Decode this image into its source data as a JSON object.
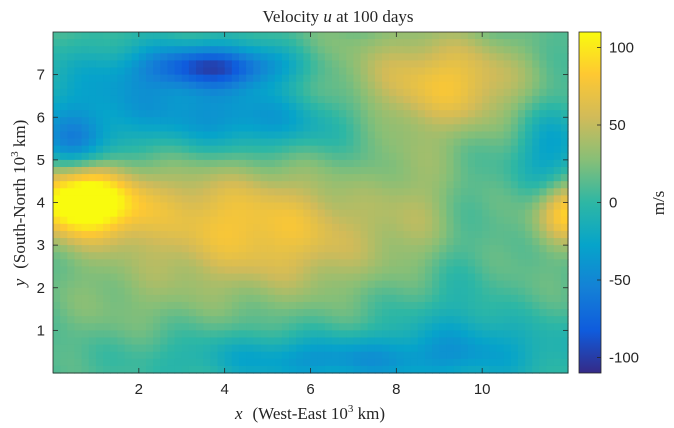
{
  "chart_data": {
    "type": "heatmap",
    "title_prefix": "Velocity ",
    "title_var": "u",
    "title_suffix": " at 100 days",
    "xlabel_var": "x",
    "xlabel_text": "(West-East 10",
    "xlabel_exp": "3",
    "xlabel_unit": " km)",
    "ylabel_var": "y",
    "ylabel_text": "(South-North 10",
    "ylabel_exp": "3",
    "ylabel_unit": " km)",
    "xlim": [
      0,
      12
    ],
    "ylim": [
      0,
      8
    ],
    "x_ticks": [
      2,
      4,
      6,
      8,
      10
    ],
    "y_ticks": [
      1,
      2,
      3,
      4,
      5,
      6,
      7
    ],
    "colorbar": {
      "label": "m/s",
      "range": [
        -110,
        110
      ],
      "ticks": [
        -100,
        -50,
        0,
        50,
        100
      ],
      "colormap": [
        "#352a87",
        "#0f5cdd",
        "#1481d6",
        "#06a4ca",
        "#2eb7a4",
        "#87bf77",
        "#d1bb59",
        "#fec832",
        "#f9fb0e"
      ]
    },
    "features": [
      {
        "x": 0.7,
        "y": 3.9,
        "u": 95,
        "sx": 0.9,
        "sy": 0.55
      },
      {
        "x": 0.4,
        "y": 4.4,
        "u": 40,
        "sx": 0.9,
        "sy": 0.5
      },
      {
        "x": 12.0,
        "y": 3.8,
        "u": 80,
        "sx": 0.5,
        "sy": 0.5
      },
      {
        "x": 5.2,
        "y": 3.1,
        "u": 55,
        "sx": 2.2,
        "sy": 1.0
      },
      {
        "x": 3.5,
        "y": 4.0,
        "u": 30,
        "sx": 2.0,
        "sy": 0.8
      },
      {
        "x": 9.5,
        "y": 6.8,
        "u": 55,
        "sx": 1.2,
        "sy": 0.8
      },
      {
        "x": 7.5,
        "y": 7.0,
        "u": 25,
        "sx": 1.5,
        "sy": 1.0
      },
      {
        "x": 8.5,
        "y": 3.8,
        "u": 25,
        "sx": 0.6,
        "sy": 1.5
      },
      {
        "x": 3.8,
        "y": 7.2,
        "u": -85,
        "sx": 1.2,
        "sy": 0.35
      },
      {
        "x": 2.0,
        "y": 6.4,
        "u": -40,
        "sx": 2.2,
        "sy": 0.8
      },
      {
        "x": 0.4,
        "y": 5.3,
        "u": -55,
        "sx": 0.6,
        "sy": 0.5
      },
      {
        "x": 11.6,
        "y": 5.2,
        "u": -40,
        "sx": 0.6,
        "sy": 0.8
      },
      {
        "x": 5.0,
        "y": 5.9,
        "u": -35,
        "sx": 1.5,
        "sy": 0.5
      },
      {
        "x": 6.6,
        "y": 0.3,
        "u": -45,
        "sx": 2.0,
        "sy": 0.4
      },
      {
        "x": 10.3,
        "y": 0.6,
        "u": -30,
        "sx": 1.5,
        "sy": 0.6
      },
      {
        "x": 9.0,
        "y": 2.0,
        "u": -20,
        "sx": 1.0,
        "sy": 1.2
      },
      {
        "x": 1.5,
        "y": 1.5,
        "u": 15,
        "sx": 1.5,
        "sy": 1.0
      },
      {
        "x": 3.0,
        "y": 0.5,
        "u": -10,
        "sx": 2.0,
        "sy": 0.5
      },
      {
        "x": 11.0,
        "y": 2.5,
        "u": 10,
        "sx": 1.0,
        "sy": 1.5
      }
    ]
  }
}
